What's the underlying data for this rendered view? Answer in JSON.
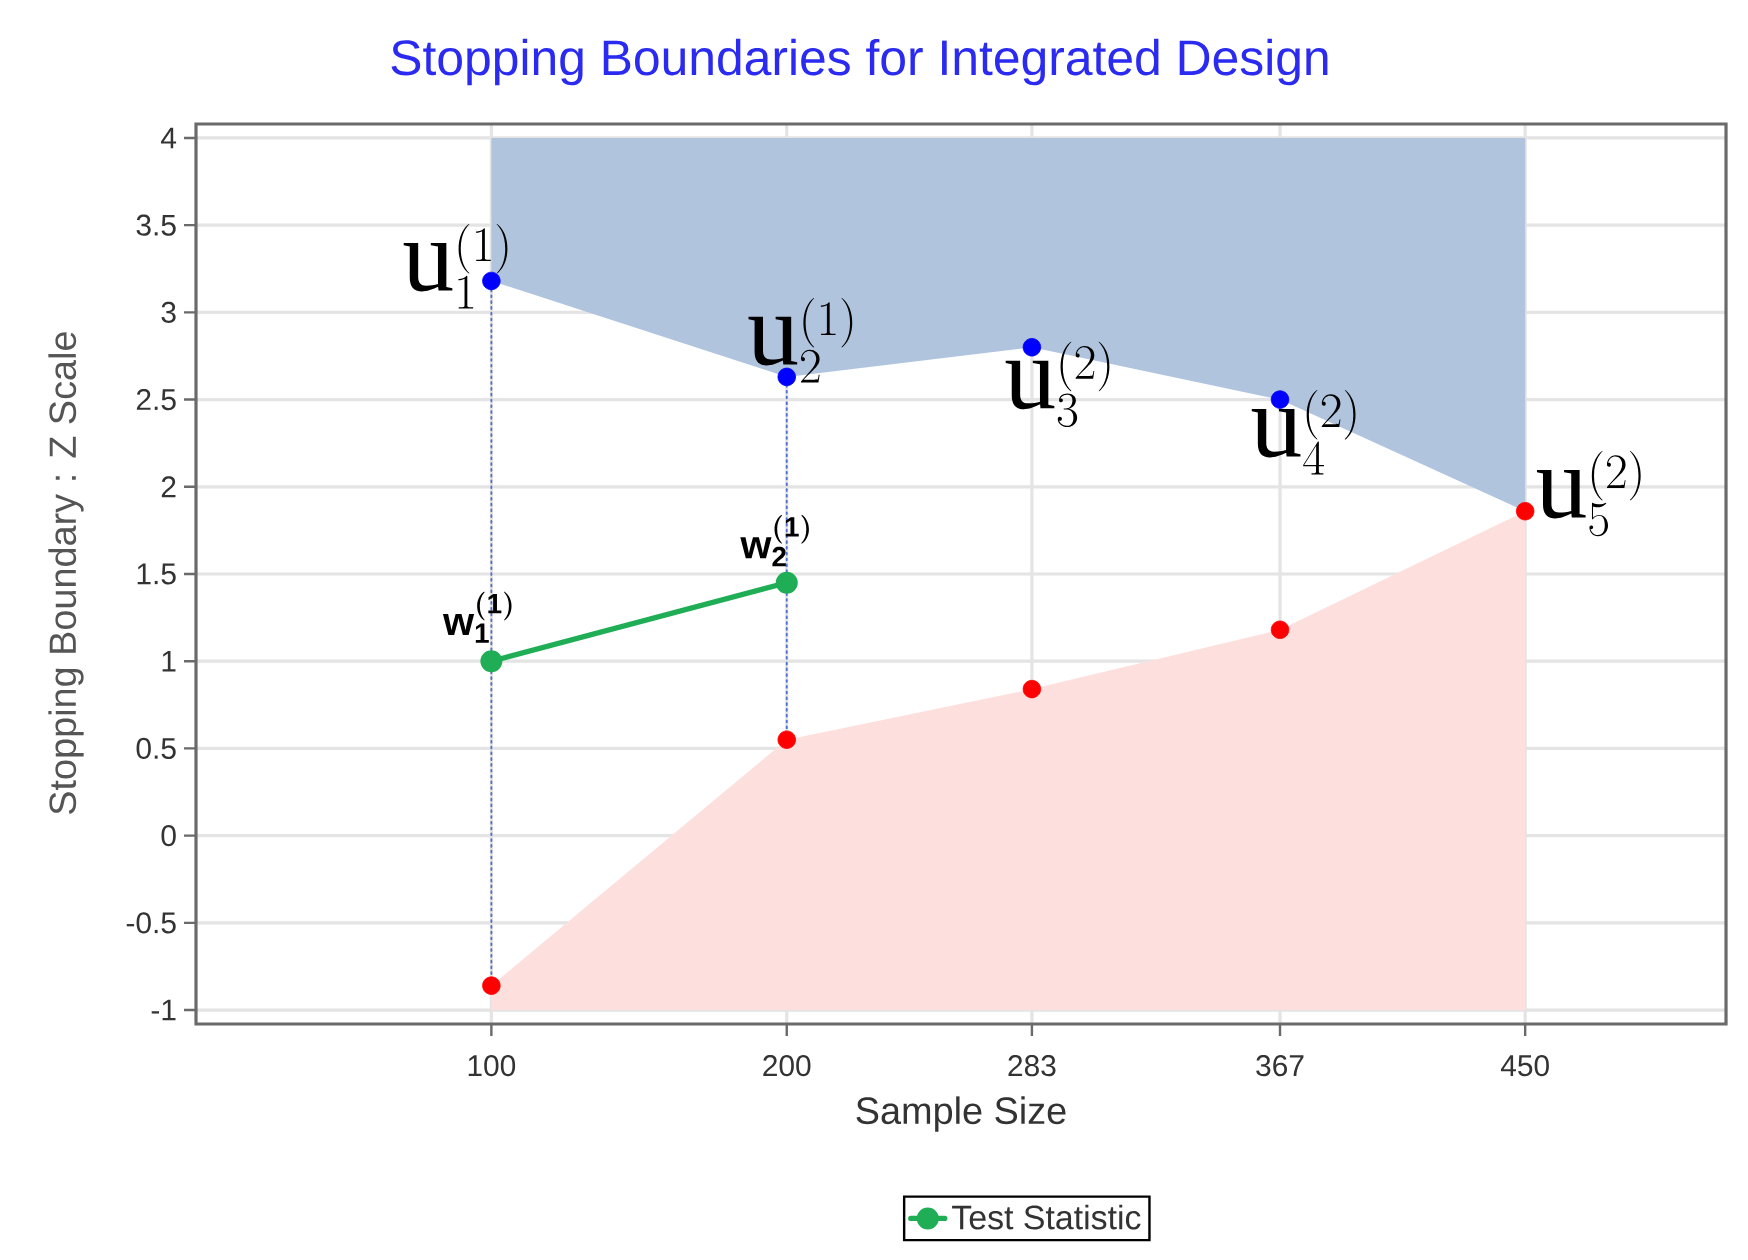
{
  "chart_data": {
    "type": "line",
    "title": "Stopping Boundaries for Integrated Design",
    "xlabel": "Sample Size",
    "ylabel": "Stopping Boundary : Z Scale",
    "xlim": [
      0,
      518
    ],
    "ylim": [
      -1.08,
      4.08
    ],
    "xticks": [
      100,
      200,
      283,
      367,
      450
    ],
    "yticks": [
      -1,
      -0.5,
      0,
      0.5,
      1,
      1.5,
      2,
      2.5,
      3,
      3.5,
      4
    ],
    "grid": true,
    "legend": "bottom",
    "series": [
      {
        "type": "area",
        "color": "#b0c4de",
        "x": [
          100,
          100,
          200,
          283,
          367,
          450,
          450
        ],
        "values": [
          4,
          3.18,
          2.63,
          2.8,
          2.5,
          1.86,
          4
        ]
      },
      {
        "type": "area",
        "color": "#fde0de",
        "x": [
          100,
          100,
          200,
          283,
          367,
          450,
          450
        ],
        "values": [
          -1,
          -0.86,
          0.55,
          0.84,
          1.18,
          1.86,
          -1
        ]
      },
      {
        "color": "#4f6fc8",
        "line_style": "dotted",
        "x": [
          100,
          100
        ],
        "values": [
          -0.86,
          3.18
        ]
      },
      {
        "color": "#4f6fc8",
        "line_style": "dotted",
        "x": [
          200,
          200
        ],
        "values": [
          0.55,
          2.63
        ]
      },
      {
        "type": "scatter",
        "color": "#0000ff",
        "marker": "circle",
        "x": [
          100,
          200,
          283,
          367
        ],
        "values": [
          3.18,
          2.63,
          2.8,
          2.5
        ]
      },
      {
        "type": "scatter",
        "color": "#ff0000",
        "marker": "circle",
        "x": [
          100,
          200,
          283,
          367,
          450
        ],
        "values": [
          -0.86,
          0.55,
          0.84,
          1.18,
          1.86
        ]
      },
      {
        "name": "Test Statistic",
        "color": "#1fae55",
        "marker": "circle",
        "x": [
          100,
          200
        ],
        "values": [
          1.0,
          1.45
        ]
      }
    ],
    "annotations": [
      {
        "text": "\\mathrm{u}_{1}^{(1)}",
        "x": 100,
        "y": 3.18
      },
      {
        "text": "\\mathrm{u}_{2}^{(1)}",
        "x": 200,
        "y": 2.63
      },
      {
        "text": "\\mathrm{u}_{3}^{(2)}",
        "x": 283,
        "y": 2.8
      },
      {
        "text": "\\mathrm{u}_{4}^{(2)}",
        "x": 367,
        "y": 2.5
      },
      {
        "text": "\\mathrm{u}_{5}^{(2)}",
        "x": 450,
        "y": 1.86
      },
      {
        "text": "\\mathsf{w}_{\\mathsf{1}}^{\\mathsf{(1)}}",
        "x": 100,
        "y": 1.0
      },
      {
        "text": "\\mathsf{w}_{\\mathsf{2}}^{\\mathsf{(1)}}",
        "x": 200,
        "y": 1.45
      }
    ]
  }
}
